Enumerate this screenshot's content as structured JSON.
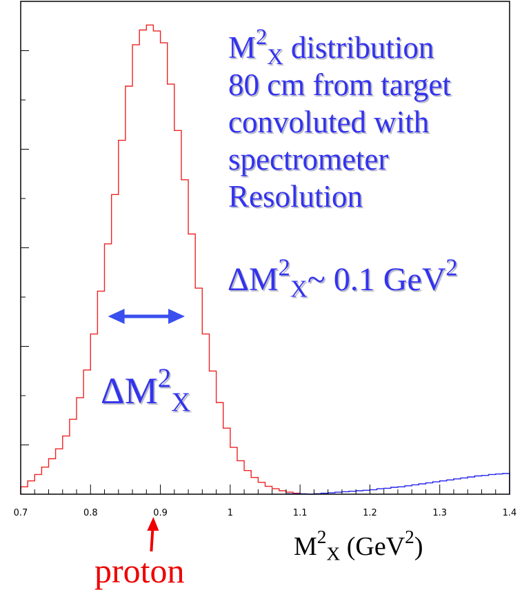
{
  "chart_data": {
    "type": "histogram",
    "x_tick_labels": [
      "0.7",
      "0.8",
      "0.9",
      "1",
      "1.1",
      "1.2",
      "1.3",
      "1.4"
    ],
    "xlim": [
      0.7,
      1.4
    ],
    "ylim": [
      0,
      1.0
    ],
    "y_tick_labels": [],
    "grid": false,
    "legend": "none",
    "series": [
      {
        "color": "#ee2222",
        "bin_width": 0.01,
        "x_start": 0.7,
        "values": [
          0.015,
          0.027,
          0.04,
          0.055,
          0.072,
          0.092,
          0.118,
          0.152,
          0.196,
          0.252,
          0.325,
          0.412,
          0.508,
          0.608,
          0.718,
          0.828,
          0.912,
          0.942,
          0.952,
          0.94,
          0.916,
          0.832,
          0.738,
          0.638,
          0.528,
          0.418,
          0.325,
          0.25,
          0.186,
          0.134,
          0.095,
          0.068,
          0.048,
          0.034,
          0.024,
          0.016,
          0.011,
          0.007,
          0.004,
          0.002
        ]
      },
      {
        "color": "#2222ee",
        "bin_width": 0.01,
        "x_start": 1.11,
        "values": [
          0.0,
          0.001,
          0.002,
          0.003,
          0.004,
          0.005,
          0.006,
          0.007,
          0.008,
          0.009,
          0.011,
          0.012,
          0.014,
          0.015,
          0.017,
          0.019,
          0.021,
          0.023,
          0.025,
          0.027,
          0.029,
          0.031,
          0.033,
          0.035,
          0.037,
          0.038,
          0.04,
          0.041,
          0.042
        ]
      }
    ],
    "annotations": {
      "width_arrow": {
        "x_from": 0.825,
        "x_to": 0.935,
        "y": 0.4,
        "color": "#3a4fee"
      },
      "proton_arrow": {
        "x": 0.885,
        "color": "#ee0000"
      }
    },
    "xlabel": {
      "base": "M",
      "sup": "2",
      "sub": "X",
      "rest": " (GeV",
      "sup2": "2",
      "close": ")"
    }
  },
  "text": {
    "desc_line1_base": "M",
    "desc_line1_sup": "2",
    "desc_line1_sub": "X",
    "desc_line1_rest": " distribution",
    "desc_line2": "80 cm from target",
    "desc_line3": "convoluted with",
    "desc_line4": "spectrometer",
    "desc_line5": "Resolution",
    "res_delta": "ΔM",
    "res_sup": "2",
    "res_sub": "X",
    "res_rest": "~ 0.1 GeV",
    "res_sup2": "2",
    "width_label_delta": "ΔM",
    "width_label_sup": "2",
    "width_label_sub": "X",
    "proton": "proton"
  }
}
